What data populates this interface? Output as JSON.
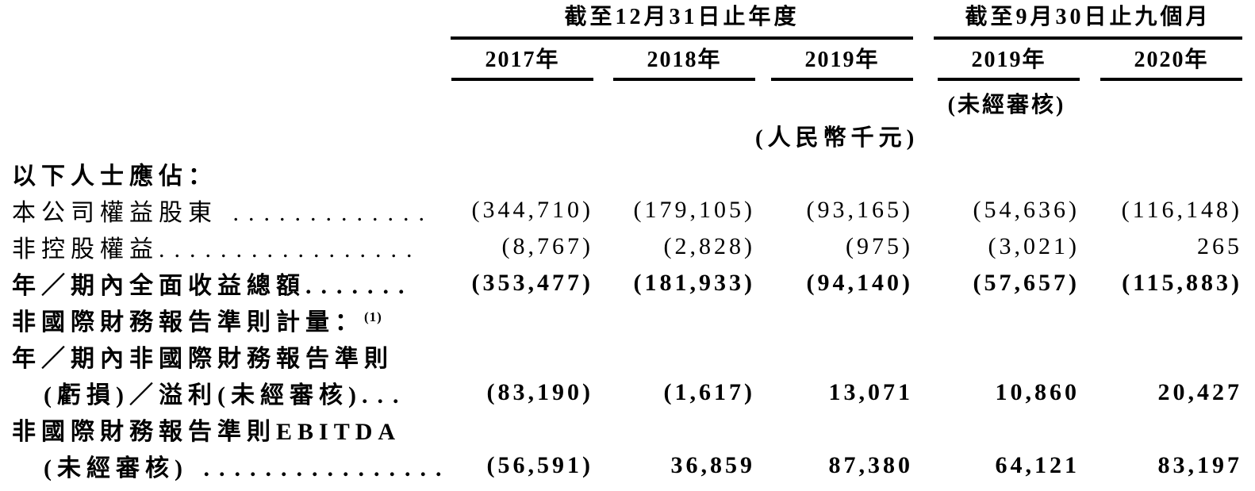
{
  "style": {
    "text_color": "#000000",
    "background_color": "#ffffff",
    "rule_color": "#000000"
  },
  "table": {
    "groups": [
      {
        "title": "截至12月31日止年度",
        "columns_spanned": 3
      },
      {
        "title": "截至9月30日止九個月",
        "columns_spanned": 2
      }
    ],
    "columns": [
      "2017年",
      "2018年",
      "2019年",
      "2019年",
      "2020年"
    ],
    "unaudited_note": "(未經審核)",
    "currency_note": "(人民幣千元)"
  },
  "rows": [
    {
      "label": "以下人士應佔：",
      "sup": "",
      "leader": "",
      "bold": true,
      "indent": false,
      "values": [
        "",
        "",
        "",
        "",
        ""
      ]
    },
    {
      "label": "本公司權益股東",
      "sup": "",
      "leader": " .............",
      "bold": false,
      "indent": false,
      "values": [
        "(344,710)",
        "(179,105)",
        "(93,165)",
        "(54,636)",
        "(116,148)"
      ]
    },
    {
      "label": "非控股權益",
      "sup": "",
      "leader": ".................",
      "bold": false,
      "indent": false,
      "values": [
        "(8,767)",
        "(2,828)",
        "(975)",
        "(3,021)",
        "265"
      ]
    },
    {
      "label": "年／期內全面收益總額",
      "sup": "",
      "leader": ".......",
      "bold": true,
      "indent": false,
      "values": [
        "(353,477)",
        "(181,933)",
        "(94,140)",
        "(57,657)",
        "(115,883)"
      ]
    },
    {
      "label": "非國際財務報告準則計量：",
      "sup": "(1)",
      "leader": "",
      "bold": true,
      "indent": false,
      "values": [
        "",
        "",
        "",
        "",
        ""
      ]
    },
    {
      "label": "年／期內非國際財務報告準則",
      "sup": "",
      "leader": "",
      "bold": true,
      "indent": false,
      "values": [
        "",
        "",
        "",
        "",
        ""
      ]
    },
    {
      "label": "(虧損)／溢利(未經審核)",
      "sup": "",
      "leader": "...",
      "bold": true,
      "indent": true,
      "values": [
        "(83,190)",
        "(1,617)",
        "13,071",
        "10,860",
        "20,427"
      ]
    },
    {
      "label": "非國際財務報告準則EBITDA",
      "sup": "",
      "leader": "",
      "bold": true,
      "indent": false,
      "values": [
        "",
        "",
        "",
        "",
        ""
      ]
    },
    {
      "label": "(未經審核)",
      "sup": "",
      "leader": " ................",
      "bold": true,
      "indent": true,
      "values": [
        "(56,591)",
        "36,859",
        "87,380",
        "64,121",
        "83,197"
      ]
    }
  ]
}
